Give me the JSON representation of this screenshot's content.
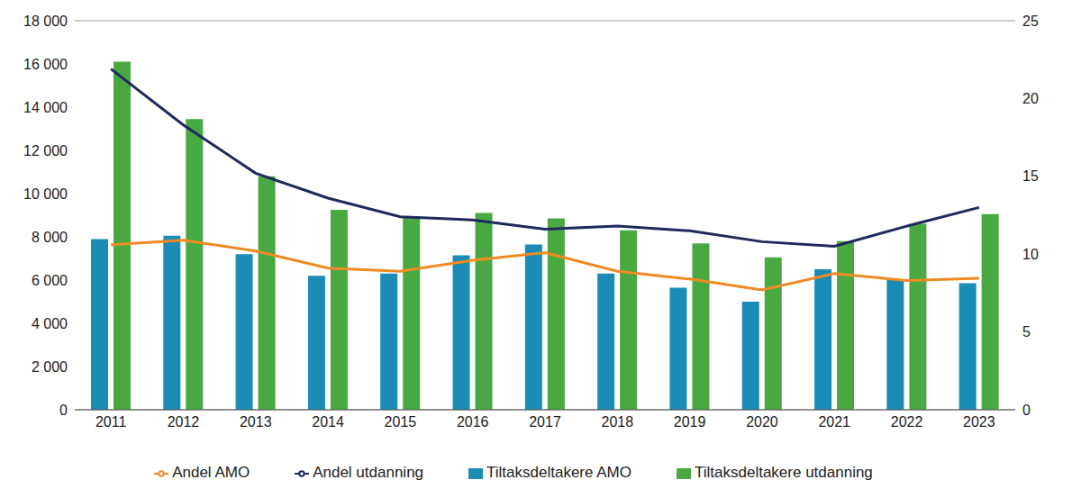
{
  "chart_data": {
    "type": "bar",
    "categories": [
      "2011",
      "2012",
      "2013",
      "2014",
      "2015",
      "2016",
      "2017",
      "2018",
      "2019",
      "2020",
      "2021",
      "2022",
      "2023"
    ],
    "series": [
      {
        "name": "Tiltaksdeltakere AMO",
        "type": "bar",
        "color": "#1a8cb5",
        "values": [
          7900,
          8050,
          7200,
          6200,
          6300,
          7150,
          7650,
          6300,
          5650,
          5000,
          6500,
          6000,
          5850
        ]
      },
      {
        "name": "Tiltaksdeltakere utdanning",
        "type": "bar",
        "color": "#4aa842",
        "values": [
          16100,
          13450,
          10800,
          9250,
          8950,
          9100,
          8850,
          8300,
          7700,
          7050,
          7800,
          8600,
          9050
        ]
      },
      {
        "name": "Andel AMO",
        "type": "line",
        "axis": "y2",
        "color": "#f08a24",
        "values": [
          10.6,
          10.9,
          10.2,
          9.1,
          8.9,
          9.6,
          10.1,
          8.9,
          8.4,
          7.7,
          8.75,
          8.3,
          8.45
        ]
      },
      {
        "name": "Andel utdanning",
        "type": "line",
        "axis": "y2",
        "color": "#1f2a5c",
        "values": [
          21.9,
          18.3,
          15.2,
          13.6,
          12.4,
          12.2,
          11.6,
          11.8,
          11.5,
          10.8,
          10.5,
          11.8,
          13.0
        ]
      }
    ],
    "ylim": [
      0,
      18000
    ],
    "yticks": [
      0,
      {
        "value": 2000,
        "label": "2 000"
      },
      {
        "value": 4000,
        "label": "4 000"
      },
      {
        "value": 6000,
        "label": "6 000"
      },
      {
        "value": 8000,
        "label": "8 000"
      },
      {
        "value": 10000,
        "label": "10 000"
      },
      {
        "value": 12000,
        "label": "12 000"
      },
      {
        "value": 14000,
        "label": "14 000"
      },
      {
        "value": 16000,
        "label": "16 000"
      },
      {
        "value": 18000,
        "label": "18 000"
      }
    ],
    "y2lim": [
      0,
      25
    ],
    "y2ticks": [
      0,
      5,
      10,
      15,
      20,
      25
    ],
    "grid": true,
    "legend": "bottom"
  }
}
